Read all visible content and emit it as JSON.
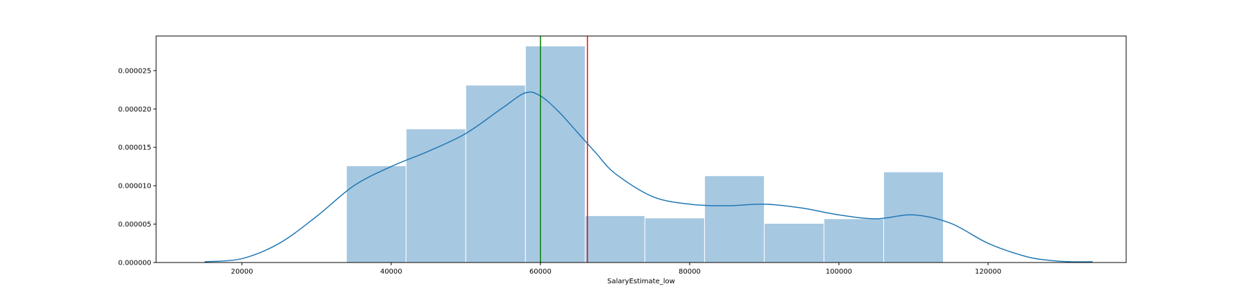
{
  "chart_data": {
    "type": "histogram",
    "xlabel": "SalaryEstimate_low",
    "ylabel": "",
    "title": "",
    "xlim": [
      8500,
      138500
    ],
    "ylim": [
      0,
      2.95e-05
    ],
    "x_ticks": [
      20000,
      40000,
      60000,
      80000,
      100000,
      120000
    ],
    "x_tick_labels": [
      "20000",
      "40000",
      "60000",
      "80000",
      "100000",
      "120000"
    ],
    "y_ticks": [
      0,
      5e-06,
      1e-05,
      1.5e-05,
      2e-05,
      2.5e-05
    ],
    "y_tick_labels": [
      "0.000000",
      "0.000005",
      "0.000010",
      "0.000015",
      "0.000020",
      "0.000025"
    ],
    "bins": [
      {
        "x0": 34000,
        "x1": 42000,
        "density": 1.26e-05
      },
      {
        "x0": 42000,
        "x1": 50000,
        "density": 1.74e-05
      },
      {
        "x0": 50000,
        "x1": 58000,
        "density": 2.31e-05
      },
      {
        "x0": 58000,
        "x1": 66000,
        "density": 2.82e-05
      },
      {
        "x0": 66000,
        "x1": 74000,
        "density": 6.1e-06
      },
      {
        "x0": 74000,
        "x1": 82000,
        "density": 5.8e-06
      },
      {
        "x0": 82000,
        "x1": 90000,
        "density": 1.13e-05
      },
      {
        "x0": 90000,
        "x1": 98000,
        "density": 5.1e-06
      },
      {
        "x0": 98000,
        "x1": 106000,
        "density": 5.7e-06
      },
      {
        "x0": 106000,
        "x1": 114000,
        "density": 1.18e-05
      }
    ],
    "kde": {
      "x": [
        15000,
        20000,
        25000,
        30000,
        35000,
        40000,
        45000,
        50000,
        55000,
        58000,
        60000,
        62500,
        65000,
        67500,
        70000,
        75000,
        80000,
        85000,
        90000,
        95000,
        100000,
        105000,
        110000,
        115000,
        120000,
        125000,
        128000,
        131000,
        134000
      ],
      "y": [
        1e-07,
        5e-07,
        2.5e-06,
        6e-06,
        1e-05,
        1.25e-05,
        1.45e-05,
        1.68e-05,
        2.02e-05,
        2.21e-05,
        2.17e-05,
        1.96e-05,
        1.69e-05,
        1.42e-05,
        1.16e-05,
        8.6e-06,
        7.6e-06,
        7.4e-06,
        7.6e-06,
        7.1e-06,
        6.2e-06,
        5.7e-06,
        6.2e-06,
        5.1e-06,
        2.5e-06,
        8e-07,
        3e-07,
        1e-07,
        1e-07
      ]
    },
    "reference_lines": [
      {
        "x": 60000,
        "color": "#008000"
      },
      {
        "x": 66300,
        "color": "#ff0000"
      }
    ],
    "colors": {
      "bar_fill": "#a7c8e1",
      "bar_edge": "#ffffff",
      "kde_line": "#1f77b4",
      "axes": "#000000"
    },
    "grid": false,
    "legend": "none"
  }
}
